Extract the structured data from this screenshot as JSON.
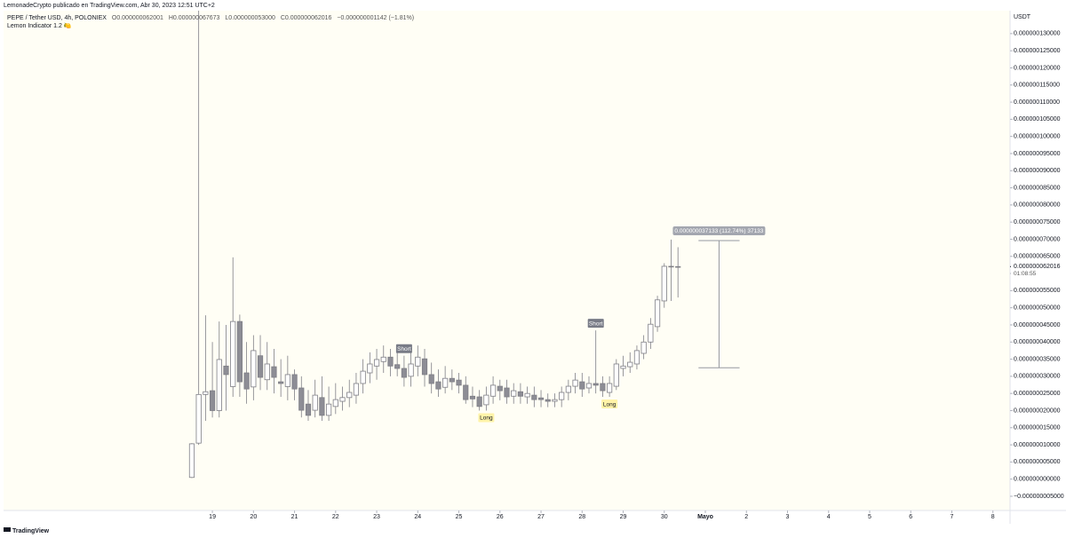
{
  "header": "LemonadeCrypto publicado en TradingView.com, Abr 30, 2023 12:51 UTC+2",
  "footer": "TradingView",
  "chart_data": {
    "type": "candlestick",
    "legend": {
      "symbol": "PEPE / Tether USD, 4h, POLONIEX",
      "open": "O0.000000062001",
      "high": "H0.000000067673",
      "low": "L0.000000053000",
      "close": "C0.000000062016",
      "change": "−0.000000001142 (−1.81%)",
      "indicator": "Lemon Indicator 1.2 🍋"
    },
    "y_unit": "USDT",
    "up_color": "#ffffff",
    "down_color": "#8d8d95",
    "wick_color": "#7e7e86",
    "open": [
      5e-10,
      1.05e-08,
      2.47e-08,
      2.58e-08,
      2e-08,
      3.3e-08,
      2.7e-08,
      4.6e-08,
      3.1e-08,
      2.69e-08,
      3.6e-08,
      2.9e-08,
      3.28e-08,
      2.84e-08,
      2.7e-08,
      3.05e-08,
      2.66e-08,
      2.19e-08,
      2.01e-08,
      2.38e-08,
      1.86e-08,
      2.12e-08,
      2.27e-08,
      2.38e-08,
      2.45e-08,
      2.79e-08,
      3.1e-08,
      3.3e-08,
      3.43e-08,
      3.56e-08,
      3.34e-08,
      3.23e-08,
      3e-08,
      3.3e-08,
      3.51e-08,
      3.05e-08,
      2.84e-08,
      2.68e-08,
      2.94e-08,
      2.89e-08,
      2.74e-08,
      2.42e-08,
      2.4e-08,
      2.17e-08,
      2.42e-08,
      2.71e-08,
      2.66e-08,
      2.42e-08,
      2.55e-08,
      2.4e-08,
      2.45e-08,
      2.37e-08,
      2.32e-08,
      2.27e-08,
      2.32e-08,
      2.53e-08,
      2.71e-08,
      2.84e-08,
      2.66e-08,
      2.79e-08,
      2.79e-08,
      2.53e-08,
      2.71e-08,
      3.23e-08,
      3.28e-08,
      3.36e-08,
      3.67e-08,
      4e-08,
      4.45e-08,
      5.2e-08,
      6.21e-08,
      6.2001e-08
    ],
    "high": [
      1.05e-08,
      1.367e-07,
      4.78e-08,
      4e-08,
      4.6e-08,
      4.5e-08,
      6.47e-08,
      4.8e-08,
      4e-08,
      4.2e-08,
      4.2e-08,
      4e-08,
      3.8e-08,
      3.5e-08,
      3.6e-08,
      3.2e-08,
      3e-08,
      2.6e-08,
      2.9e-08,
      3e-08,
      2.7e-08,
      2.8e-08,
      2.7e-08,
      2.9e-08,
      3.1e-08,
      3.5e-08,
      3.7e-08,
      3.8e-08,
      3.9e-08,
      3.8e-08,
      3.8e-08,
      3.6e-08,
      3.8e-08,
      3.9e-08,
      3.8e-08,
      3.4e-08,
      3.2e-08,
      3.3e-08,
      3.2e-08,
      3.1e-08,
      3e-08,
      2.7e-08,
      2.6e-08,
      2.7e-08,
      3e-08,
      2.9e-08,
      2.9e-08,
      2.8e-08,
      2.8e-08,
      2.7e-08,
      2.7e-08,
      2.6e-08,
      2.5e-08,
      2.5e-08,
      2.7e-08,
      2.9e-08,
      3.1e-08,
      3.1e-08,
      3e-08,
      4.34e-08,
      3e-08,
      3e-08,
      3.5e-08,
      3.6e-08,
      3.7e-08,
      3.9e-08,
      4.2e-08,
      4.7e-08,
      5.35e-08,
      6.3e-08,
      6.99e-08,
      6.7673e-08
    ],
    "low": [
      3e-10,
      1e-08,
      1.7e-08,
      1.8e-08,
      1.8e-08,
      2e-08,
      2.4e-08,
      2.4e-08,
      2.2e-08,
      2.3e-08,
      2.6e-08,
      2.6e-08,
      2.5e-08,
      2.4e-08,
      2.3e-08,
      2.3e-08,
      1.8e-08,
      1.7e-08,
      1.8e-08,
      1.7e-08,
      1.7e-08,
      1.9e-08,
      2e-08,
      2.1e-08,
      2.2e-08,
      2.5e-08,
      2.8e-08,
      2.9e-08,
      3.1e-08,
      3e-08,
      3e-08,
      2.7e-08,
      2.7e-08,
      3e-08,
      2.7e-08,
      2.5e-08,
      2.4e-08,
      2.5e-08,
      2.6e-08,
      2.5e-08,
      2.2e-08,
      2.1e-08,
      2e-08,
      2e-08,
      2.2e-08,
      2.3e-08,
      2.2e-08,
      2.2e-08,
      2.2e-08,
      2.2e-08,
      2.1e-08,
      2.1e-08,
      2.1e-08,
      2.1e-08,
      2.1e-08,
      2.3e-08,
      2.5e-08,
      2.4e-08,
      2.5e-08,
      2.5e-08,
      2.4e-08,
      2.4e-08,
      2.6e-08,
      3e-08,
      3.1e-08,
      3.2e-08,
      3.5e-08,
      3.8e-08,
      4.3e-08,
      5e-08,
      5.2e-08,
      5.3e-08
    ],
    "close": [
      1.03e-08,
      2.47e-08,
      2.55e-08,
      2e-08,
      3.49e-08,
      3.05e-08,
      4.6e-08,
      2.84e-08,
      2.63e-08,
      3.75e-08,
      2.97e-08,
      3.36e-08,
      2.97e-08,
      2.79e-08,
      3.05e-08,
      2.63e-08,
      2.01e-08,
      1.86e-08,
      2.45e-08,
      1.86e-08,
      2.19e-08,
      2.32e-08,
      2.38e-08,
      2.53e-08,
      2.79e-08,
      3.15e-08,
      3.36e-08,
      3.49e-08,
      3.56e-08,
      3.3e-08,
      3.23e-08,
      2.97e-08,
      3.36e-08,
      3.56e-08,
      3.05e-08,
      2.79e-08,
      2.63e-08,
      2.94e-08,
      2.84e-08,
      2.74e-08,
      2.32e-08,
      2.34e-08,
      2.12e-08,
      2.45e-08,
      2.74e-08,
      2.58e-08,
      2.4e-08,
      2.58e-08,
      2.42e-08,
      2.5e-08,
      2.32e-08,
      2.32e-08,
      2.27e-08,
      2.32e-08,
      2.53e-08,
      2.71e-08,
      2.89e-08,
      2.63e-08,
      2.79e-08,
      2.74e-08,
      2.58e-08,
      2.79e-08,
      3.36e-08,
      3.3e-08,
      3.41e-08,
      3.75e-08,
      4e-08,
      4.52e-08,
      5.23e-08,
      6.21e-08,
      6.2e-08,
      6.2016e-08
    ],
    "xlim": [
      -27.5,
      119.5
    ],
    "xticks": [
      {
        "value": 3,
        "label": "19"
      },
      {
        "value": 9,
        "label": "20"
      },
      {
        "value": 15,
        "label": "21"
      },
      {
        "value": 21,
        "label": "22"
      },
      {
        "value": 27,
        "label": "23"
      },
      {
        "value": 33,
        "label": "24"
      },
      {
        "value": 39,
        "label": "25"
      },
      {
        "value": 45,
        "label": "26"
      },
      {
        "value": 51,
        "label": "27"
      },
      {
        "value": 57,
        "label": "28"
      },
      {
        "value": 63,
        "label": "29"
      },
      {
        "value": 69,
        "label": "30"
      },
      {
        "value": 75,
        "label": "Mayo"
      },
      {
        "value": 81,
        "label": "2"
      },
      {
        "value": 87,
        "label": "3"
      },
      {
        "value": 93,
        "label": "4"
      },
      {
        "value": 99,
        "label": "5"
      },
      {
        "value": 105,
        "label": "6"
      },
      {
        "value": 111,
        "label": "7"
      },
      {
        "value": 117,
        "label": "8"
      }
    ],
    "ylim": [
      -9.15e-09,
      1.367e-07
    ],
    "yticks": [
      {
        "value": -5e-09,
        "label": "−0.000000005000"
      },
      {
        "value": 0,
        "label": "0.000000000000"
      },
      {
        "value": 5e-09,
        "label": "0.000000005000"
      },
      {
        "value": 1e-08,
        "label": "0.000000010000"
      },
      {
        "value": 1.5e-08,
        "label": "0.000000015000"
      },
      {
        "value": 2e-08,
        "label": "0.000000020000"
      },
      {
        "value": 2.5e-08,
        "label": "0.000000025000"
      },
      {
        "value": 3e-08,
        "label": "0.000000030000"
      },
      {
        "value": 3.5e-08,
        "label": "0.000000035000"
      },
      {
        "value": 4e-08,
        "label": "0.000000040000"
      },
      {
        "value": 4.5e-08,
        "label": "0.000000045000"
      },
      {
        "value": 5e-08,
        "label": "0.000000050000"
      },
      {
        "value": 5.5e-08,
        "label": "0.000000055000"
      },
      {
        "value": 6e-08,
        "label": "0.000000060000"
      },
      {
        "value": 6.5e-08,
        "label": "0.000000065000"
      },
      {
        "value": 7e-08,
        "label": "0.000000070000"
      },
      {
        "value": 7.5e-08,
        "label": "0.000000075000"
      },
      {
        "value": 8e-08,
        "label": "0.000000080000"
      },
      {
        "value": 8.5e-08,
        "label": "0.000000085000"
      },
      {
        "value": 9e-08,
        "label": "0.000000090000"
      },
      {
        "value": 9.5e-08,
        "label": "0.000000095000"
      },
      {
        "value": 1e-07,
        "label": "0.000000100000"
      },
      {
        "value": 1.05e-07,
        "label": "0.000000105000"
      },
      {
        "value": 1.1e-07,
        "label": "0.000000110000"
      },
      {
        "value": 1.15e-07,
        "label": "0.000000115000"
      },
      {
        "value": 1.2e-07,
        "label": "0.000000120000"
      },
      {
        "value": 1.25e-07,
        "label": "0.000000125000"
      },
      {
        "value": 1.3e-07,
        "label": "0.000000130000"
      }
    ],
    "last_price": {
      "value": 6.2016e-08,
      "label": "0.000000062016",
      "countdown": "01:08:55"
    },
    "signals": [
      {
        "label": "Short",
        "index": 31
      },
      {
        "label": "Long",
        "index": 43
      },
      {
        "label": "Short",
        "index": 59
      },
      {
        "label": "Long",
        "index": 61
      }
    ],
    "measure": {
      "from_index": 74,
      "to_index": 80,
      "from": 3.25e-08,
      "to": 6.96e-08,
      "label": "0.000000037133 (112.74%) 37133"
    }
  }
}
